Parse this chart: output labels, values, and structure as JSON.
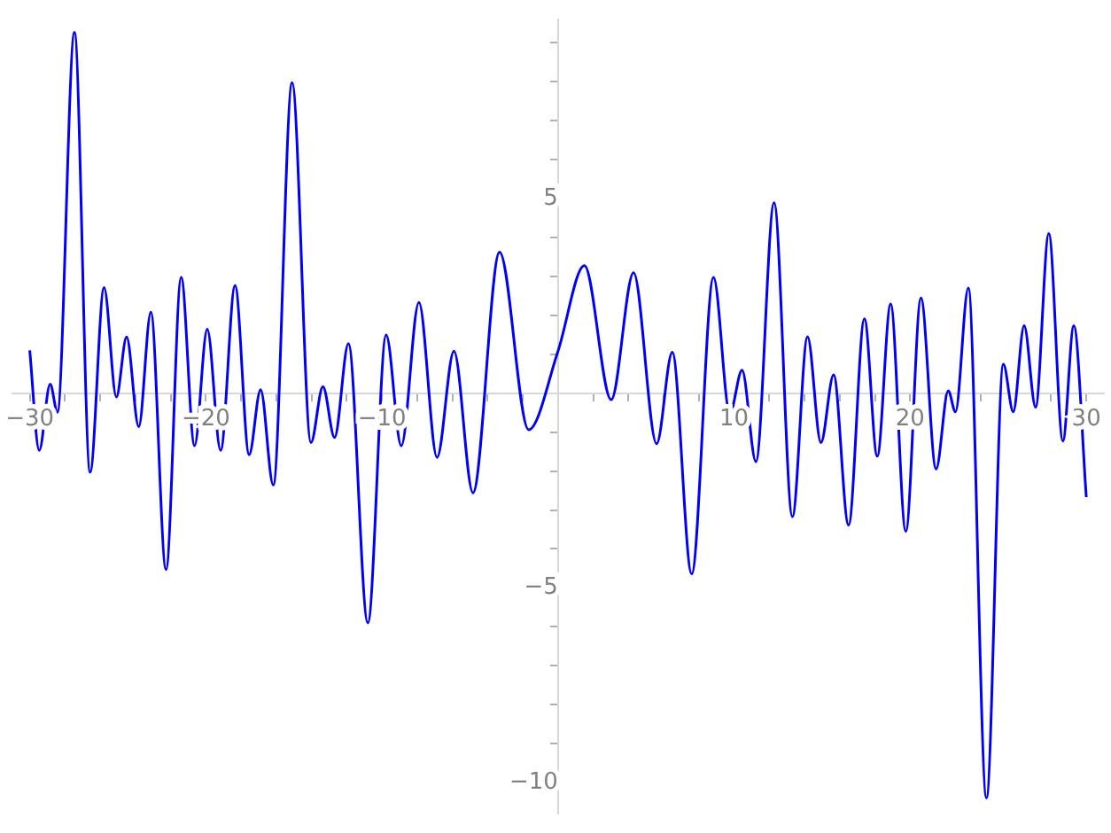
{
  "chart_data": {
    "type": "line",
    "xlim": [
      -31,
      31
    ],
    "ylim": [
      -10.8,
      9.6
    ],
    "xticks": [
      -30,
      {
        "value": -28,
        "label": null
      },
      {
        "value": -26,
        "label": null
      },
      {
        "value": -24,
        "label": null
      },
      {
        "value": -22,
        "label": null
      },
      -20,
      {
        "value": -18,
        "label": null
      },
      {
        "value": -16,
        "label": null
      },
      {
        "value": -14,
        "label": null
      },
      {
        "value": -12,
        "label": null
      },
      -10,
      {
        "value": -8,
        "label": null
      },
      {
        "value": -6,
        "label": null
      },
      {
        "value": -4,
        "label": null
      },
      {
        "value": -2,
        "label": null
      },
      {
        "value": 2,
        "label": null
      },
      {
        "value": 4,
        "label": null
      },
      {
        "value": 6,
        "label": null
      },
      {
        "value": 8,
        "label": null
      },
      10,
      {
        "value": 12,
        "label": null
      },
      {
        "value": 14,
        "label": null
      },
      {
        "value": 16,
        "label": null
      },
      {
        "value": 18,
        "label": null
      },
      20,
      {
        "value": 22,
        "label": null
      },
      {
        "value": 24,
        "label": null
      },
      {
        "value": 26,
        "label": null
      },
      {
        "value": 28,
        "label": null
      },
      30
    ],
    "yticks": [
      -10,
      {
        "value": -9,
        "label": null
      },
      {
        "value": -8,
        "label": null
      },
      {
        "value": -7,
        "label": null
      },
      {
        "value": -6,
        "label": null
      },
      -5,
      {
        "value": -4,
        "label": null
      },
      {
        "value": -3,
        "label": null
      },
      {
        "value": -2,
        "label": null
      },
      {
        "value": -1,
        "label": null
      },
      {
        "value": 1,
        "label": null
      },
      {
        "value": 2,
        "label": null
      },
      {
        "value": 3,
        "label": null
      },
      {
        "value": 4,
        "label": null
      },
      5,
      {
        "value": 6,
        "label": null
      },
      {
        "value": 7,
        "label": null
      },
      {
        "value": 8,
        "label": null
      },
      {
        "value": 9,
        "label": null
      }
    ],
    "grid": false,
    "marker": "none",
    "line_style": "solid",
    "series": [
      {
        "color": "#0000ff",
        "x": [
          -30,
          -29.46,
          -28.84,
          -28.43,
          -27.46,
          -26.57,
          -25.78,
          -25.08,
          -24.5,
          -23.81,
          -23.12,
          -22.26,
          -21.4,
          -20.64,
          -19.92,
          -19.16,
          -18.34,
          -17.54,
          -16.89,
          -16.17,
          -15.1,
          -14.03,
          -13.35,
          -12.69,
          -11.9,
          -10.8,
          -9.76,
          -8.9,
          -7.9,
          -6.87,
          -5.91,
          -4.83,
          -3.32,
          -1.67,
          0,
          1.5,
          3.02,
          4.29,
          5.6,
          6.49,
          7.59,
          8.83,
          9.76,
          10.45,
          11.24,
          12.27,
          13.31,
          14.17,
          14.93,
          15.65,
          16.5,
          17.4,
          18.13,
          18.89,
          19.75,
          20.61,
          21.47,
          22.16,
          22.57,
          23.3,
          24.33,
          25.29,
          25.85,
          26.47,
          27.12,
          27.87,
          28.67,
          29.29,
          30
        ],
        "values": [
          1.1,
          -1.47,
          0.23,
          -0.49,
          9.26,
          -2.03,
          2.71,
          -0.1,
          1.44,
          -0.86,
          2.08,
          -4.53,
          2.97,
          -1.35,
          1.64,
          -1.47,
          2.76,
          -1.58,
          0.09,
          -2.36,
          7.97,
          -1.27,
          0.17,
          -1.14,
          1.27,
          -5.9,
          1.49,
          -1.35,
          2.33,
          -1.65,
          1.08,
          -2.56,
          3.62,
          -0.94,
          1.08,
          3.27,
          -0.17,
          3.09,
          -1.3,
          1.05,
          -4.64,
          2.97,
          -0.52,
          0.59,
          -1.76,
          4.89,
          -3.17,
          1.45,
          -1.27,
          0.47,
          -3.39,
          1.91,
          -1.62,
          2.29,
          -3.55,
          2.44,
          -1.95,
          0.06,
          -0.48,
          2.7,
          -10.39,
          0.74,
          -0.48,
          1.73,
          -0.36,
          4.1,
          -1.23,
          1.73,
          -2.67
        ]
      }
    ]
  }
}
